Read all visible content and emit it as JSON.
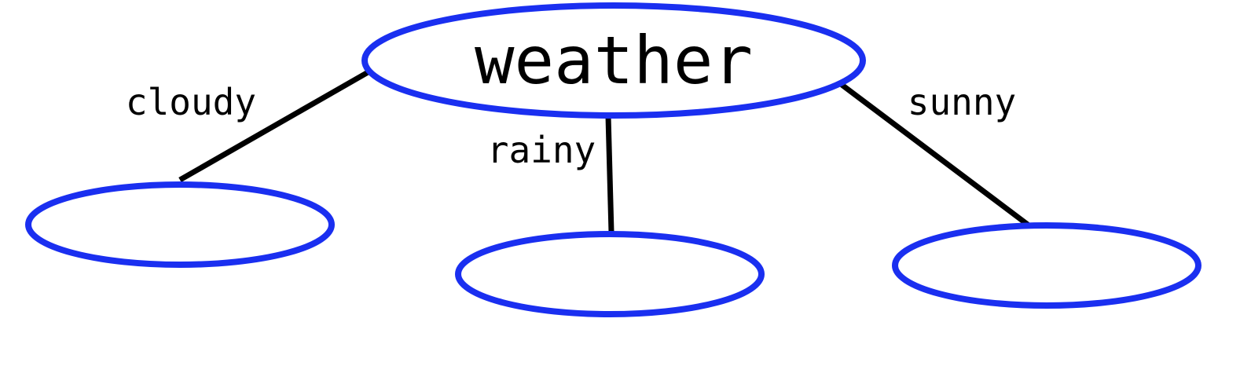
{
  "diagram": {
    "root": {
      "label": "weather"
    },
    "edges": [
      {
        "label": "cloudy"
      },
      {
        "label": "rainy"
      },
      {
        "label": "sunny"
      }
    ],
    "colors": {
      "node_stroke": "#1a2ff0",
      "edge_stroke": "#000000",
      "text": "#000000",
      "background": "#ffffff"
    }
  }
}
